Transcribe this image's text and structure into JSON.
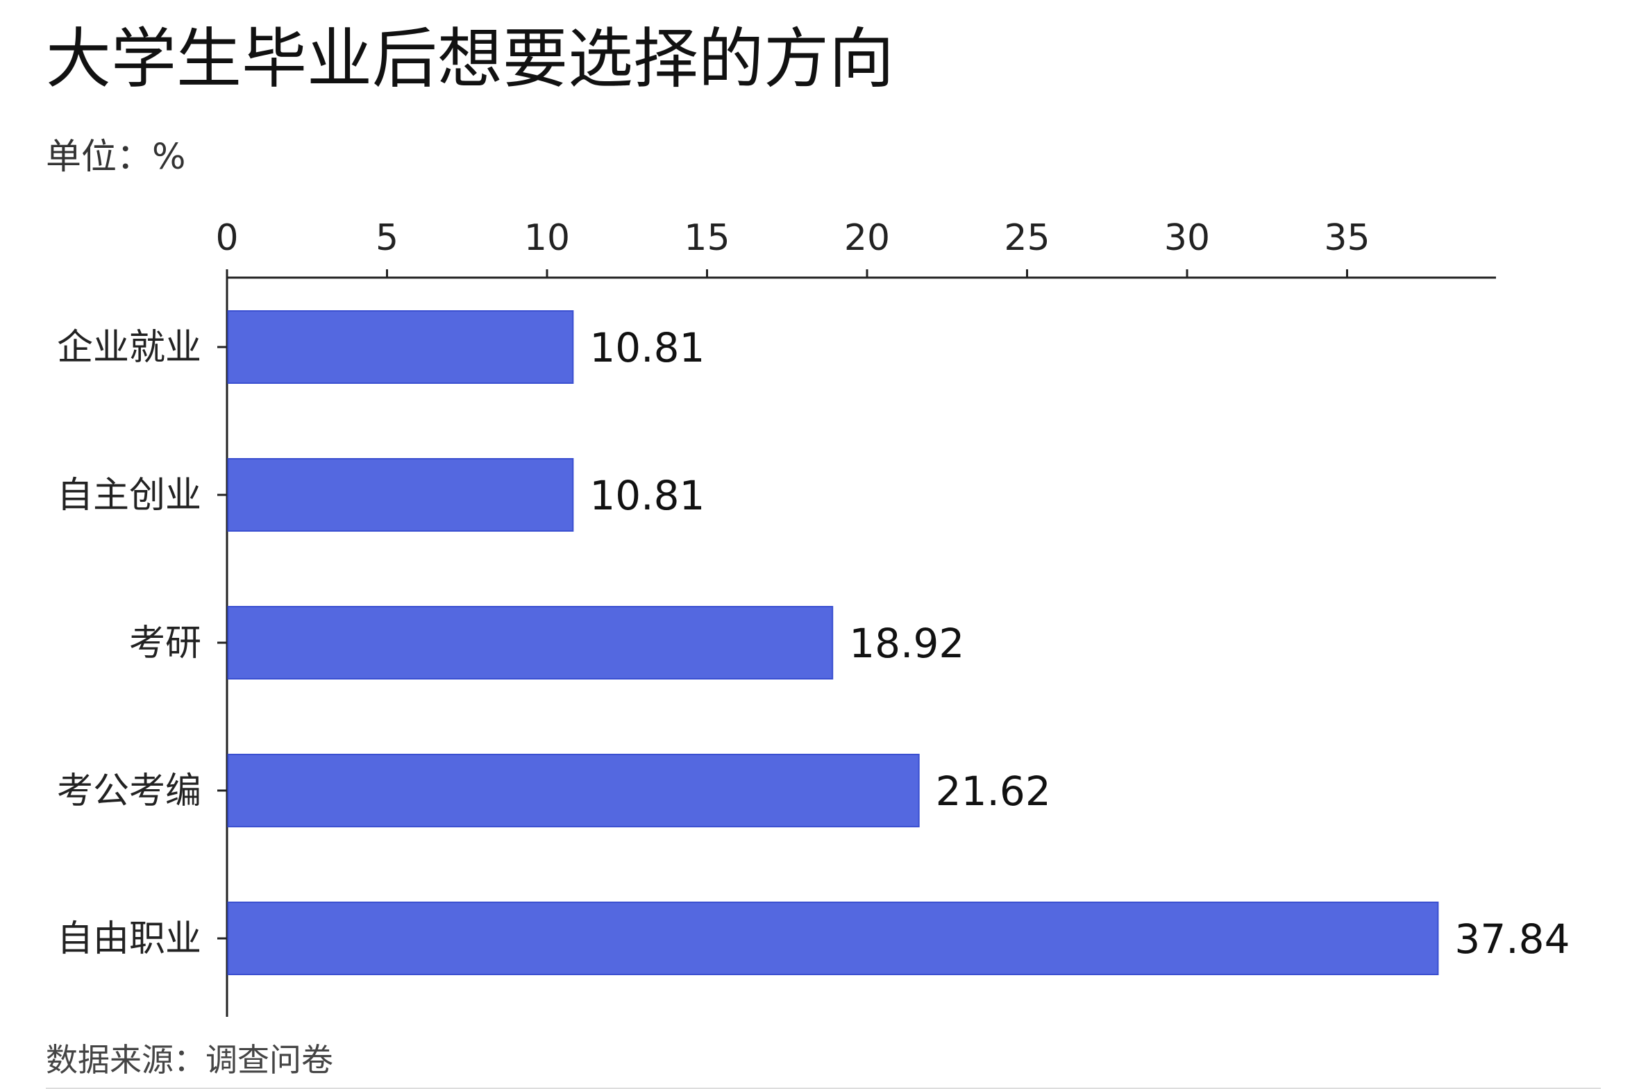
{
  "chart_data": {
    "type": "bar",
    "orientation": "horizontal",
    "title": "大学生毕业后想要选择的方向",
    "unit": "单位：%",
    "source": "数据来源：调查问卷",
    "categories": [
      "企业就业",
      "自主创业",
      "考研",
      "考公考编",
      "自由职业"
    ],
    "values": [
      10.81,
      10.81,
      18.92,
      21.62,
      37.84
    ],
    "value_labels": [
      "10.81",
      "10.81",
      "18.92",
      "21.62",
      "37.84"
    ],
    "xlim": [
      0,
      40
    ],
    "xticks": [
      0,
      5,
      10,
      15,
      20,
      25,
      30,
      35
    ],
    "tick_labels": [
      "0",
      "5",
      "10",
      "15",
      "20",
      "25",
      "30",
      "35"
    ],
    "x_axis_position": "top",
    "grid": false,
    "bar_color": "#5468E0",
    "bar_edge_color": "#3A4FD0"
  }
}
